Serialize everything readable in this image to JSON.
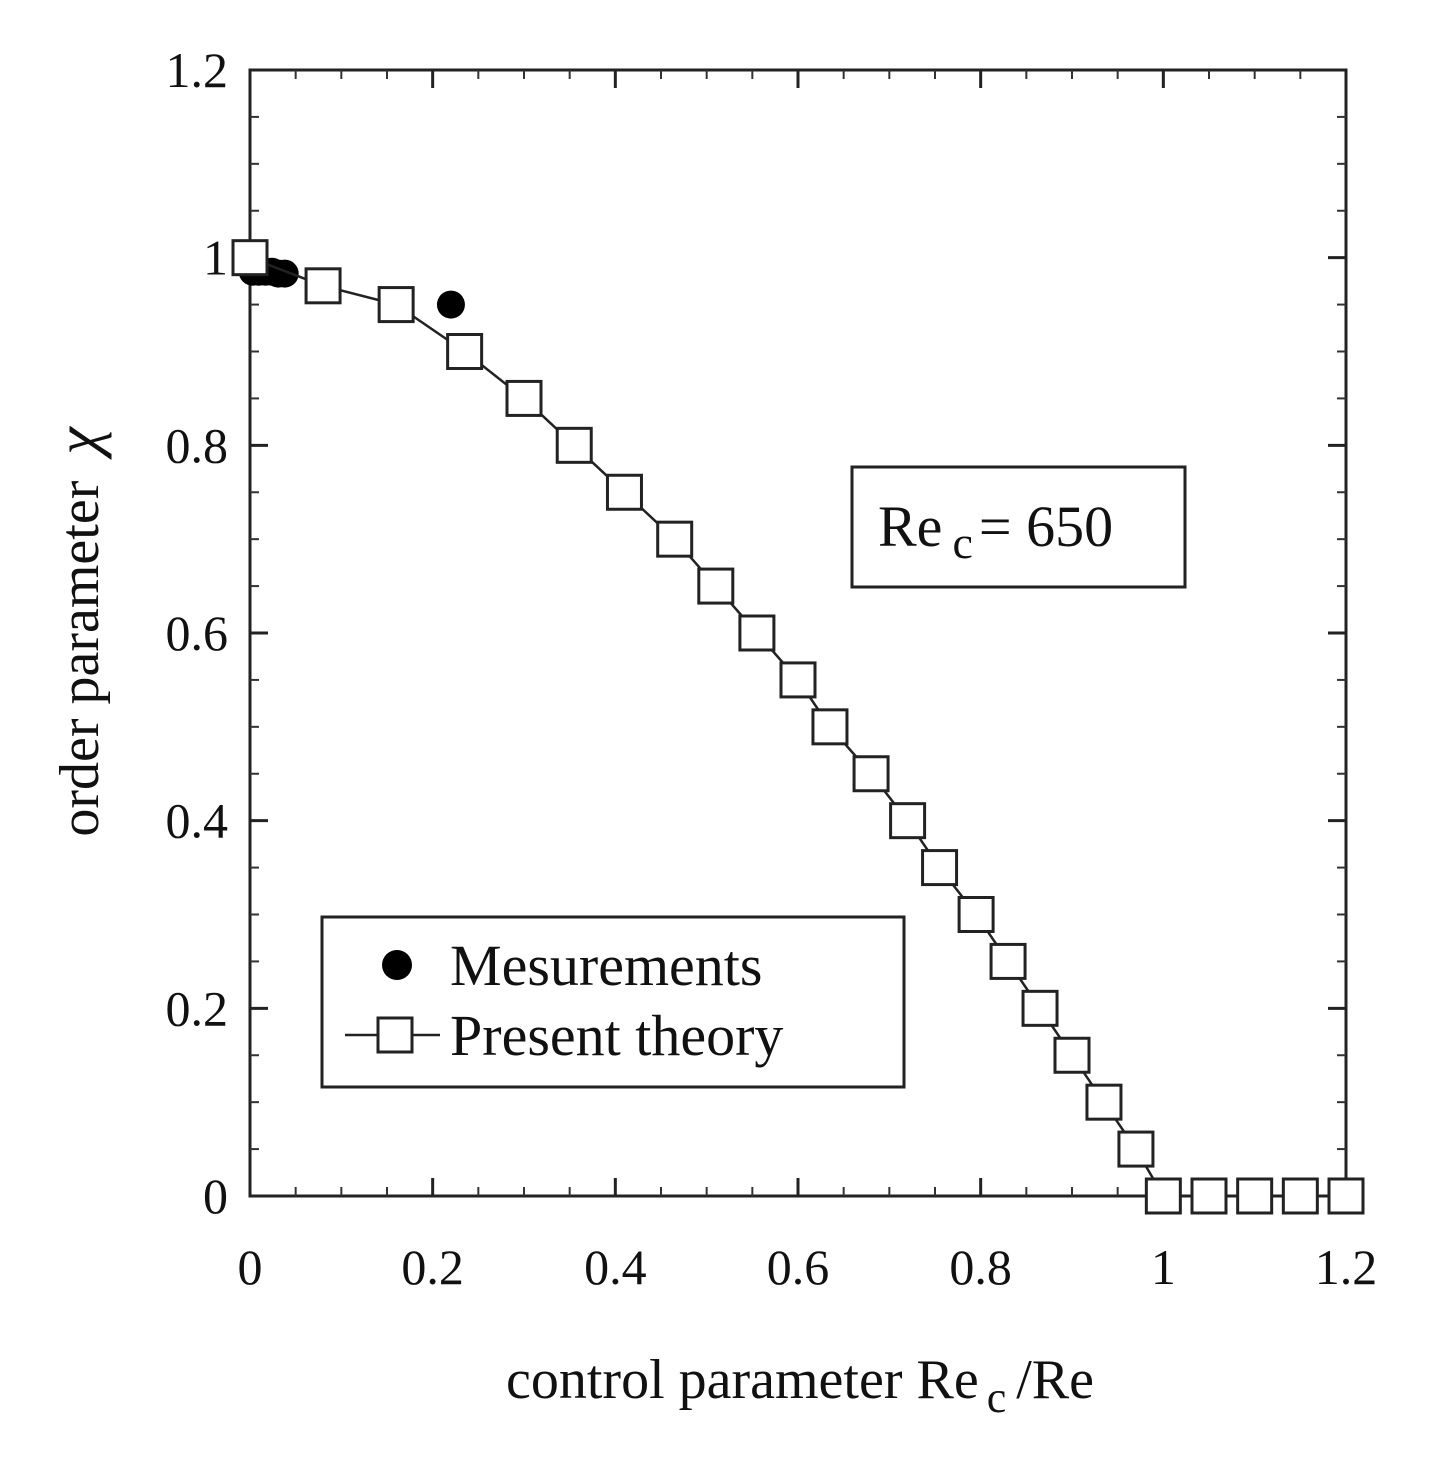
{
  "chart_data": {
    "type": "scatter",
    "xlabel": {
      "main": "control parameter Re",
      "sub": "c",
      "suffix": "/Re"
    },
    "ylabel": {
      "main": "order parameter",
      "symbol": "χ"
    },
    "xlim": [
      0,
      1.2
    ],
    "ylim": [
      0,
      1.2
    ],
    "xticks": [
      0,
      0.2,
      0.4,
      0.6,
      0.8,
      1,
      1.2
    ],
    "xtick_labels": [
      "0",
      "0.2",
      "0.4",
      "0.6",
      "0.8",
      "1",
      "1.2"
    ],
    "yticks": [
      0,
      0.2,
      0.4,
      0.6,
      0.8,
      1,
      1.2
    ],
    "ytick_labels": [
      "0",
      "0.2",
      "0.4",
      "0.6",
      "0.8",
      "1",
      "1.2"
    ],
    "grid": false,
    "annotation": {
      "main": "Re",
      "sub": "c",
      "suffix": "= 650",
      "position": "upper-right"
    },
    "legend_position": "lower-left",
    "series": [
      {
        "name": "Mesurements",
        "marker": "filled-circle",
        "line": false,
        "color": "#000000",
        "x": [
          0.003,
          0.01,
          0.017,
          0.024,
          0.031,
          0.038,
          0.22
        ],
        "y": [
          0.985,
          0.985,
          0.985,
          0.985,
          0.983,
          0.983,
          0.95
        ]
      },
      {
        "name": "Present theory",
        "marker": "open-square",
        "line": true,
        "color": "#222222",
        "x": [
          0,
          0.08,
          0.16,
          0.235,
          0.3,
          0.355,
          0.41,
          0.465,
          0.51,
          0.555,
          0.6,
          0.635,
          0.68,
          0.72,
          0.755,
          0.795,
          0.83,
          0.865,
          0.9,
          0.935,
          0.97,
          1.0,
          1.05,
          1.1,
          1.15,
          1.2
        ],
        "y": [
          1.0,
          0.97,
          0.95,
          0.9,
          0.85,
          0.8,
          0.75,
          0.7,
          0.65,
          0.6,
          0.55,
          0.5,
          0.45,
          0.4,
          0.35,
          0.3,
          0.25,
          0.2,
          0.15,
          0.1,
          0.05,
          0.0,
          0.0,
          0.0,
          0.0,
          0.0
        ]
      }
    ]
  }
}
